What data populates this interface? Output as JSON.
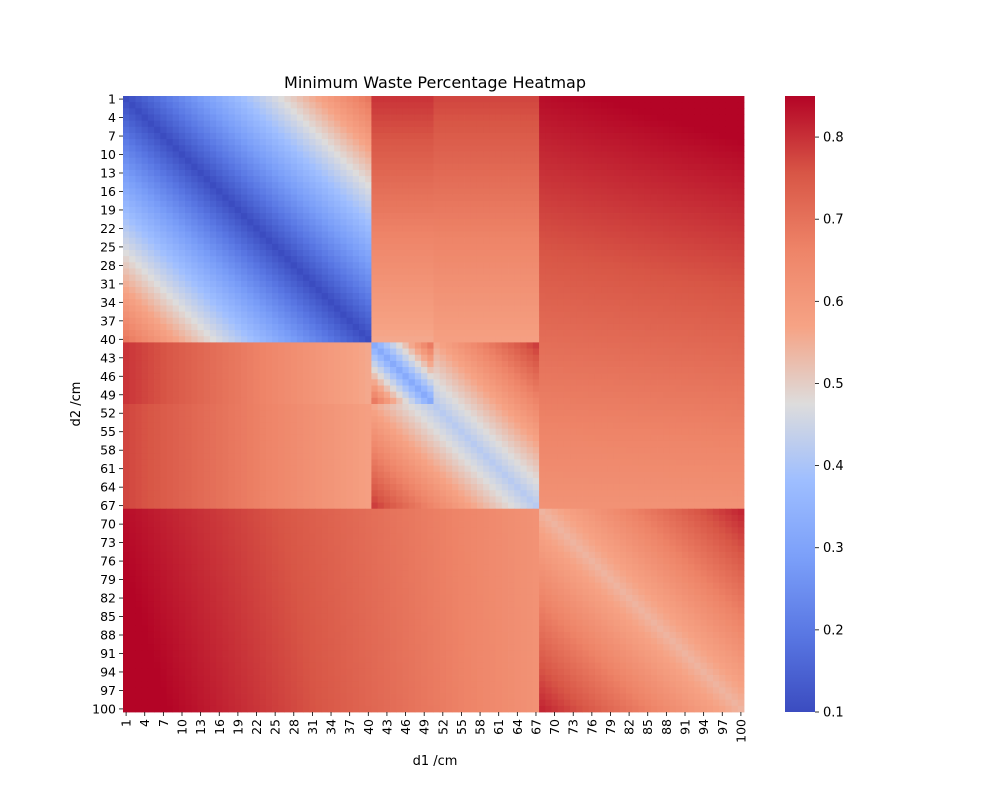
{
  "chart_data": {
    "type": "heatmap",
    "title": "Minimum Waste Percentage Heatmap",
    "xlabel": "d1 /cm",
    "ylabel": "d2 /cm",
    "x": {
      "start": 1,
      "end": 100,
      "step": 1,
      "tick_every": 3
    },
    "y": {
      "start": 1,
      "end": 100,
      "step": 1,
      "tick_every": 3
    },
    "colormap": "coolwarm",
    "colorbar": {
      "min": 0.1,
      "max": 0.85,
      "ticks": [
        "0.1",
        "0.2",
        "0.3",
        "0.4",
        "0.5",
        "0.6",
        "0.7",
        "0.8"
      ]
    },
    "description": "Symmetric matrix: value near 0.1 on the diagonal, rising away from it; boundary discontinuities at 40, 50 and 67 cm"
  }
}
